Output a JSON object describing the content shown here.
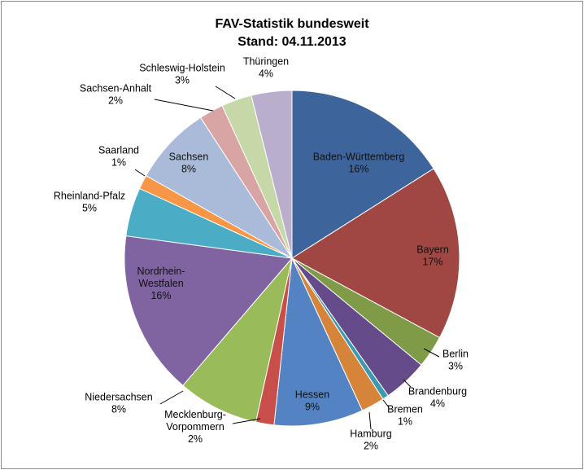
{
  "chart_data": {
    "type": "pie",
    "title_lines": [
      "FAV-Statistik bundesweit",
      "Stand: 04.11.2013"
    ],
    "legend": "none",
    "slices": [
      {
        "label": "Baden-Württemberg",
        "label_lines": [
          "Baden-Württemberg"
        ],
        "pct_label": "16%",
        "value": 16.4,
        "color": "#3e659b"
      },
      {
        "label": "Bayern",
        "label_lines": [
          "Bayern"
        ],
        "pct_label": "17%",
        "value": 17.2,
        "color": "#a04643"
      },
      {
        "label": "Berlin",
        "label_lines": [
          "Berlin"
        ],
        "pct_label": "3%",
        "value": 3.2,
        "color": "#7f9b48"
      },
      {
        "label": "Brandenburg",
        "label_lines": [
          "Brandenburg"
        ],
        "pct_label": "4%",
        "value": 4.4,
        "color": "#654b8a"
      },
      {
        "label": "Bremen",
        "label_lines": [
          "Bremen"
        ],
        "pct_label": "1%",
        "value": 0.6,
        "color": "#3c99b2"
      },
      {
        "label": "Hamburg",
        "label_lines": [
          "Hamburg"
        ],
        "pct_label": "2%",
        "value": 2.3,
        "color": "#d6843a"
      },
      {
        "label": "Hessen",
        "label_lines": [
          "Hessen"
        ],
        "pct_label": "9%",
        "value": 8.8,
        "color": "#5383c3"
      },
      {
        "label": "Mecklenburg-Vorpommern",
        "label_lines": [
          "Mecklenburg-",
          "Vorpommern"
        ],
        "pct_label": "2%",
        "value": 1.8,
        "color": "#c84e4a"
      },
      {
        "label": "Niedersachsen",
        "label_lines": [
          "Niedersachsen"
        ],
        "pct_label": "8%",
        "value": 8.0,
        "color": "#9abb59"
      },
      {
        "label": "Nordrhein-Westfalen",
        "label_lines": [
          "Nordrhein-",
          "Westfalen"
        ],
        "pct_label": "16%",
        "value": 16.2,
        "color": "#8064a2"
      },
      {
        "label": "Rheinland-Pfalz",
        "label_lines": [
          "Rheinland-Pfalz"
        ],
        "pct_label": "5%",
        "value": 4.8,
        "color": "#4bacc6"
      },
      {
        "label": "Saarland",
        "label_lines": [
          "Saarland"
        ],
        "pct_label": "1%",
        "value": 1.4,
        "color": "#f79646"
      },
      {
        "label": "Sachsen",
        "label_lines": [
          "Sachsen"
        ],
        "pct_label": "8%",
        "value": 7.8,
        "color": "#a9bbd9"
      },
      {
        "label": "Sachsen-Anhalt",
        "label_lines": [
          "Sachsen-Anhalt"
        ],
        "pct_label": "2%",
        "value": 2.4,
        "color": "#d8a5a4"
      },
      {
        "label": "Schleswig-Holstein",
        "label_lines": [
          "Schleswig-Holstein"
        ],
        "pct_label": "3%",
        "value": 3.0,
        "color": "#c6d8a7"
      },
      {
        "label": "Thüringen",
        "label_lines": [
          "Thüringen"
        ],
        "pct_label": "4%",
        "value": 4.0,
        "color": "#b9aecb"
      }
    ]
  }
}
